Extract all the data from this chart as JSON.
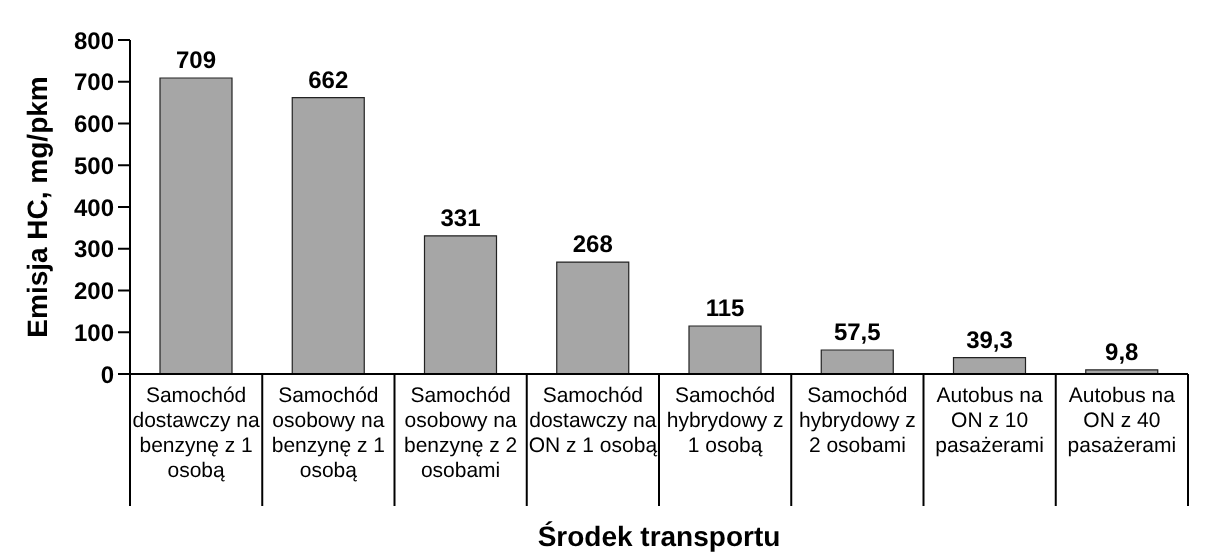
{
  "chart_data": {
    "type": "bar",
    "xlabel": "Środek transportu",
    "ylabel": "Emisja HC, mg/pkm",
    "categories": [
      "Samochód dostawczy na benzynę z 1 osobą",
      "Samochód osobowy na benzynę z 1 osobą",
      "Samochód osobowy na benzynę z 2 osobami",
      "Samochód dostawczy na ON z 1 osobą",
      "Samochód hybrydowy z 1 osobą",
      "Samochód hybrydowy z 2 osobami",
      "Autobus na ON z 10 pasażerami",
      "Autobus na ON z 40 pasażerami"
    ],
    "values": [
      709,
      662,
      331,
      268,
      115,
      57.5,
      39.3,
      9.8
    ],
    "value_labels": [
      "709",
      "662",
      "331",
      "268",
      "115",
      "57,5",
      "39,3",
      "9,8"
    ],
    "color": "#a6a6a6",
    "ylim": [
      0,
      800
    ],
    "yticks": [
      0,
      100,
      200,
      300,
      400,
      500,
      600,
      700,
      800
    ],
    "grid": false
  }
}
